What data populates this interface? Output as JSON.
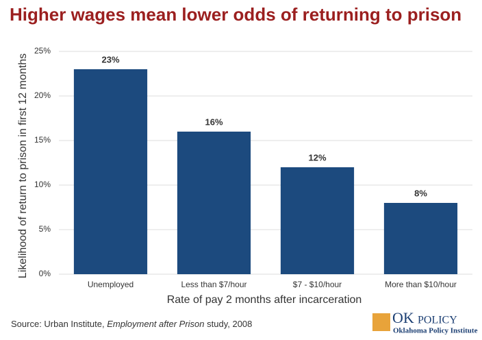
{
  "chart_data": {
    "type": "bar",
    "title": "Higher wages mean lower odds of returning to prison",
    "categories": [
      "Unemployed",
      "Less than $7/hour",
      "$7 - $10/hour",
      "More than $10/hour"
    ],
    "values": [
      23,
      16,
      12,
      8
    ],
    "value_labels": [
      "23%",
      "16%",
      "12%",
      "8%"
    ],
    "color": "#1c4a7e",
    "ylim": [
      0,
      25
    ],
    "yticks": [
      {
        "value": 0,
        "label": "0%"
      },
      {
        "value": 5,
        "label": "5%"
      },
      {
        "value": 10,
        "label": "10%"
      },
      {
        "value": 15,
        "label": "15%"
      },
      {
        "value": 20,
        "label": "20%"
      },
      {
        "value": 25,
        "label": "25%"
      }
    ],
    "grid": true,
    "y_label": "Likelihood of return to prison in first 12 months",
    "x_label": "Rate of pay 2 months after incarceration"
  },
  "footer": {
    "source_prefix": "Source: Urban Institute, ",
    "source_title": "Employment after Prison",
    "source_suffix": " study, 2008",
    "logo_ok": "OK",
    "logo_policy": "POLICY",
    "logo_tagline": "Oklahoma Policy Institute"
  }
}
